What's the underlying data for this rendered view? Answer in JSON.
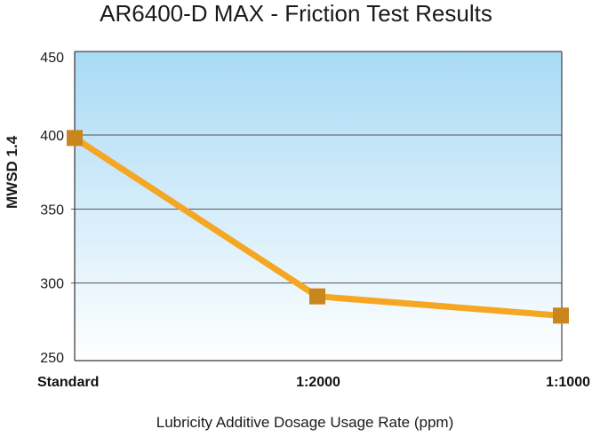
{
  "chart_data": {
    "type": "line",
    "title": "AR6400-D MAX - Friction Test Results",
    "xlabel": "Lubricity Additive Dosage Usage Rate (ppm)",
    "ylabel": "MWSD 1.4",
    "categories": [
      "Standard",
      "1:2000",
      "1:1000"
    ],
    "series": [
      {
        "name": "MWSD 1.4",
        "values": [
          398,
          291,
          278
        ]
      }
    ],
    "ylim": [
      250,
      450
    ],
    "yticks": [
      250,
      300,
      350,
      400,
      450
    ],
    "grid": true,
    "legend": "none",
    "colors": {
      "line": "#F5A623",
      "marker": "#C9851E",
      "plot_bg_top": "#A9DAF5",
      "plot_bg_bottom": "#FFFFFF",
      "gridline": "#555555"
    }
  }
}
